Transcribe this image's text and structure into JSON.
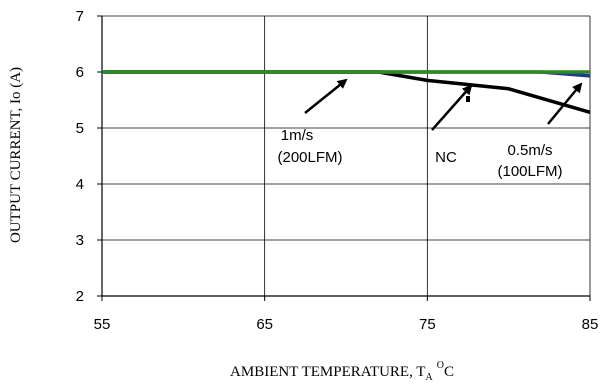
{
  "chart_data": {
    "type": "line",
    "xlabel_main": "AMBIENT TEMPERATURE, T",
    "xlabel_sub": "A",
    "xlabel_deg": "O",
    "xlabel_unit": "C",
    "ylabel": "OUTPUT CURRENT, Io  (A)",
    "xlim": [
      55,
      85
    ],
    "ylim": [
      2,
      7
    ],
    "x_ticks": [
      "55",
      "65",
      "75",
      "85"
    ],
    "y_ticks": [
      "2",
      "3",
      "4",
      "5",
      "6",
      "7"
    ],
    "grid": true,
    "series": [
      {
        "name": "NC",
        "color": "#000000",
        "x": [
          55,
          72,
          75,
          80,
          85
        ],
        "y": [
          6.0,
          6.0,
          5.85,
          5.7,
          5.28
        ]
      },
      {
        "name": "0.5m/s (100LFM)",
        "color": "#1f3a93",
        "x": [
          55,
          82,
          85
        ],
        "y": [
          6.0,
          6.0,
          5.93
        ]
      },
      {
        "name": "1m/s (200LFM)",
        "color": "#2e8b22",
        "x": [
          55,
          85
        ],
        "y": [
          6.0,
          6.0
        ]
      }
    ],
    "annotations": [
      {
        "id": "ann-200",
        "lines": [
          "1m/s",
          "(200LFM)"
        ]
      },
      {
        "id": "ann-nc",
        "lines": [
          "NC"
        ]
      },
      {
        "id": "ann-100",
        "lines": [
          "0.5m/s",
          "(100LFM)"
        ]
      }
    ]
  }
}
